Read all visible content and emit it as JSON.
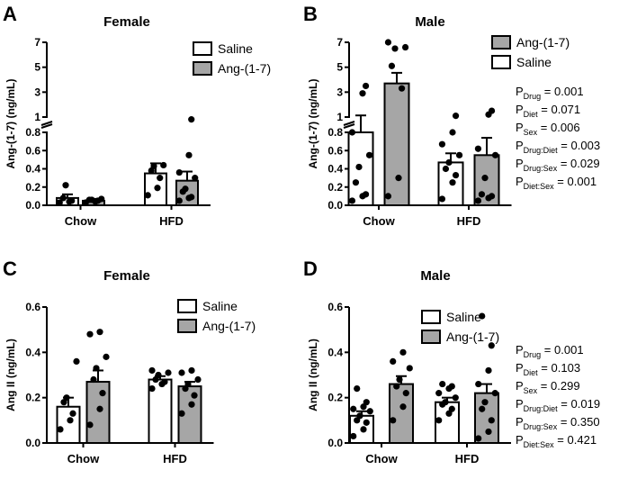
{
  "chart_data": [
    {
      "panel": "A",
      "title": "Female",
      "type": "bar",
      "ylabel": "Ang-(1-7) (ng/mL)",
      "broken_axis": true,
      "lower_ticks": [
        "0.0",
        "0.2",
        "0.4",
        "0.6",
        "0.8"
      ],
      "upper_ticks": [
        "1",
        "3",
        "5",
        "7"
      ],
      "categories": [
        "Chow",
        "HFD"
      ],
      "series": [
        {
          "name": "Saline",
          "color": "#ffffff",
          "values": [
            0.08,
            0.35
          ],
          "sem": [
            0.04,
            0.11
          ],
          "points": [
            [
              0.03,
              0.04,
              0.05,
              0.08,
              0.22
            ],
            [
              0.11,
              0.19,
              0.3,
              0.38,
              0.43,
              0.44
            ]
          ]
        },
        {
          "name": "Ang-(1-7)",
          "color": "#a6a6a6",
          "values": [
            0.05,
            0.27
          ],
          "sem": [
            0.02,
            0.1
          ],
          "points": [
            [
              0.03,
              0.04,
              0.05,
              0.06,
              0.06,
              0.07
            ],
            [
              0.05,
              0.08,
              0.09,
              0.15,
              0.18,
              0.3,
              0.36,
              0.55,
              0.81
            ]
          ]
        }
      ],
      "legend": [
        "Saline",
        "Ang-(1-7)"
      ],
      "stats": []
    },
    {
      "panel": "B",
      "title": "Male",
      "type": "bar",
      "ylabel": "Ang-(1-7) (ng/mL)",
      "broken_axis": true,
      "lower_ticks": [
        "0.0",
        "0.2",
        "0.4",
        "0.6",
        "0.8"
      ],
      "upper_ticks": [
        "1",
        "3",
        "5",
        "7"
      ],
      "categories": [
        "Chow",
        "HFD"
      ],
      "series": [
        {
          "name": "Saline",
          "color": "#ffffff",
          "values": [
            0.8,
            0.47
          ],
          "sem": [
            0.33,
            0.1
          ],
          "points": [
            [
              0.05,
              0.1,
              0.12,
              0.25,
              0.42,
              0.55,
              0.8,
              2.9,
              3.5
            ],
            [
              0.07,
              0.25,
              0.33,
              0.4,
              0.47,
              0.55,
              0.67,
              0.8,
              1.1
            ]
          ]
        },
        {
          "name": "Ang-(1-7)",
          "color": "#a6a6a6",
          "values": [
            3.7,
            0.55
          ],
          "sem": [
            0.85,
            0.19
          ],
          "points": [
            [
              0.1,
              0.3,
              3.3,
              5.1,
              6.5,
              6.6,
              7.0
            ],
            [
              0.05,
              0.08,
              0.1,
              0.12,
              0.3,
              0.55,
              0.62,
              1.2,
              1.5
            ]
          ]
        }
      ],
      "legend": [
        "Ang-(1-7)",
        "Saline"
      ],
      "stats": [
        {
          "sub": "Drug",
          "value": "0.001"
        },
        {
          "sub": "Diet",
          "value": "0.071"
        },
        {
          "sub": "Sex",
          "value": "0.006"
        },
        {
          "sub": "Drug:Diet",
          "value": "0.003"
        },
        {
          "sub": "Drug:Sex",
          "value": "0.029"
        },
        {
          "sub": "Diet:Sex",
          "value": "0.001"
        }
      ]
    },
    {
      "panel": "C",
      "title": "Female",
      "type": "bar",
      "ylabel": "Ang II (ng/mL)",
      "broken_axis": false,
      "ticks": [
        "0.0",
        "0.2",
        "0.4",
        "0.6"
      ],
      "ylim": [
        0,
        0.6
      ],
      "categories": [
        "Chow",
        "HFD"
      ],
      "series": [
        {
          "name": "Saline",
          "color": "#ffffff",
          "values": [
            0.16,
            0.28
          ],
          "sem": [
            0.04,
            0.015
          ],
          "points": [
            [
              0.06,
              0.1,
              0.13,
              0.18,
              0.2,
              0.36
            ],
            [
              0.24,
              0.26,
              0.27,
              0.28,
              0.3,
              0.31,
              0.32
            ]
          ]
        },
        {
          "name": "Ang-(1-7)",
          "color": "#a6a6a6",
          "values": [
            0.27,
            0.25
          ],
          "sem": [
            0.05,
            0.02
          ],
          "points": [
            [
              0.08,
              0.15,
              0.22,
              0.28,
              0.33,
              0.38,
              0.48,
              0.49
            ],
            [
              0.13,
              0.17,
              0.21,
              0.24,
              0.26,
              0.28,
              0.31,
              0.32
            ]
          ]
        }
      ],
      "legend": [
        "Saline",
        "Ang-(1-7)"
      ],
      "stats": []
    },
    {
      "panel": "D",
      "title": "Male",
      "type": "bar",
      "ylabel": "Ang II (ng/mL)",
      "broken_axis": false,
      "ticks": [
        "0.0",
        "0.2",
        "0.4",
        "0.6"
      ],
      "ylim": [
        0,
        0.6
      ],
      "categories": [
        "Chow",
        "HFD"
      ],
      "series": [
        {
          "name": "Saline",
          "color": "#ffffff",
          "values": [
            0.12,
            0.18
          ],
          "sem": [
            0.02,
            0.02
          ],
          "points": [
            [
              0.03,
              0.06,
              0.09,
              0.1,
              0.12,
              0.14,
              0.15,
              0.16,
              0.18,
              0.24
            ],
            [
              0.1,
              0.13,
              0.15,
              0.17,
              0.18,
              0.2,
              0.22,
              0.24,
              0.25,
              0.26
            ]
          ]
        },
        {
          "name": "Ang-(1-7)",
          "color": "#a6a6a6",
          "values": [
            0.26,
            0.22
          ],
          "sem": [
            0.035,
            0.04
          ],
          "points": [
            [
              0.1,
              0.16,
              0.22,
              0.25,
              0.28,
              0.33,
              0.36,
              0.4
            ],
            [
              0.02,
              0.05,
              0.1,
              0.15,
              0.18,
              0.22,
              0.26,
              0.32,
              0.43,
              0.56
            ]
          ]
        }
      ],
      "legend": [
        "Saline",
        "Ang-(1-7)"
      ],
      "stats": [
        {
          "sub": "Drug",
          "value": "0.001"
        },
        {
          "sub": "Diet",
          "value": "0.103"
        },
        {
          "sub": "Sex",
          "value": "0.299"
        },
        {
          "sub": "Drug:Diet",
          "value": "0.019"
        },
        {
          "sub": "Drug:Sex",
          "value": "0.350"
        },
        {
          "sub": "Diet:Sex",
          "value": "0.421"
        }
      ]
    }
  ],
  "stat_prefix": "P"
}
